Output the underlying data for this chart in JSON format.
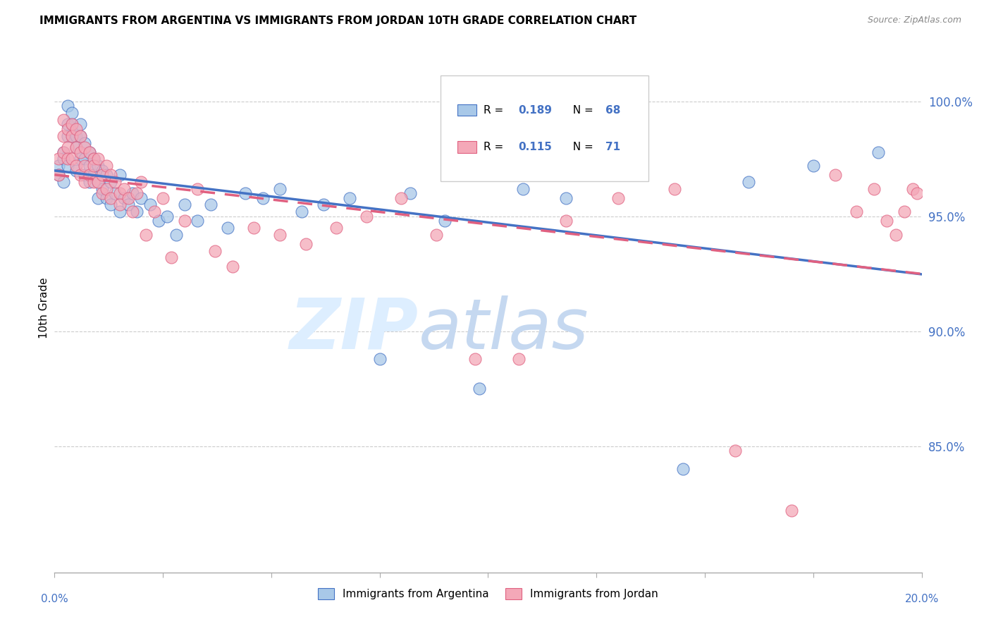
{
  "title": "IMMIGRANTS FROM ARGENTINA VS IMMIGRANTS FROM JORDAN 10TH GRADE CORRELATION CHART",
  "source": "Source: ZipAtlas.com",
  "ylabel": "10th Grade",
  "ytick_labels": [
    "100.0%",
    "95.0%",
    "90.0%",
    "85.0%"
  ],
  "ytick_values": [
    1.0,
    0.95,
    0.9,
    0.85
  ],
  "xlim": [
    0.0,
    0.2
  ],
  "ylim": [
    0.795,
    1.025
  ],
  "legend_label1": "Immigrants from Argentina",
  "legend_label2": "Immigrants from Jordan",
  "color_argentina": "#a8c8e8",
  "color_jordan": "#f4a8b8",
  "trendline_color_argentina": "#4472c4",
  "trendline_color_jordan": "#e06080",
  "watermark_zip": "ZIP",
  "watermark_atlas": "atlas",
  "R_argentina": 0.189,
  "R_jordan": 0.115,
  "N_argentina": 68,
  "N_jordan": 71,
  "argentina_x": [
    0.001,
    0.001,
    0.002,
    0.002,
    0.002,
    0.003,
    0.003,
    0.003,
    0.003,
    0.004,
    0.004,
    0.004,
    0.005,
    0.005,
    0.005,
    0.006,
    0.006,
    0.006,
    0.007,
    0.007,
    0.007,
    0.008,
    0.008,
    0.008,
    0.009,
    0.009,
    0.01,
    0.01,
    0.01,
    0.011,
    0.011,
    0.012,
    0.012,
    0.013,
    0.013,
    0.014,
    0.015,
    0.015,
    0.016,
    0.017,
    0.018,
    0.019,
    0.02,
    0.022,
    0.024,
    0.026,
    0.028,
    0.03,
    0.033,
    0.036,
    0.04,
    0.044,
    0.048,
    0.052,
    0.057,
    0.062,
    0.068,
    0.075,
    0.082,
    0.09,
    0.098,
    0.108,
    0.118,
    0.13,
    0.145,
    0.16,
    0.175,
    0.19
  ],
  "argentina_y": [
    0.972,
    0.968,
    0.978,
    0.965,
    0.975,
    0.972,
    0.985,
    0.99,
    0.998,
    0.985,
    0.99,
    0.995,
    0.985,
    0.98,
    0.97,
    0.975,
    0.985,
    0.99,
    0.975,
    0.968,
    0.982,
    0.972,
    0.965,
    0.978,
    0.968,
    0.975,
    0.965,
    0.972,
    0.958,
    0.962,
    0.97,
    0.968,
    0.958,
    0.965,
    0.955,
    0.96,
    0.952,
    0.968,
    0.958,
    0.955,
    0.96,
    0.952,
    0.958,
    0.955,
    0.948,
    0.95,
    0.942,
    0.955,
    0.948,
    0.955,
    0.945,
    0.96,
    0.958,
    0.962,
    0.952,
    0.955,
    0.958,
    0.888,
    0.96,
    0.948,
    0.875,
    0.962,
    0.958,
    0.968,
    0.84,
    0.965,
    0.972,
    0.978
  ],
  "jordan_x": [
    0.001,
    0.001,
    0.002,
    0.002,
    0.002,
    0.003,
    0.003,
    0.003,
    0.004,
    0.004,
    0.004,
    0.005,
    0.005,
    0.005,
    0.006,
    0.006,
    0.006,
    0.007,
    0.007,
    0.007,
    0.008,
    0.008,
    0.009,
    0.009,
    0.009,
    0.01,
    0.01,
    0.011,
    0.011,
    0.012,
    0.012,
    0.013,
    0.013,
    0.014,
    0.015,
    0.015,
    0.016,
    0.017,
    0.018,
    0.019,
    0.02,
    0.021,
    0.023,
    0.025,
    0.027,
    0.03,
    0.033,
    0.037,
    0.041,
    0.046,
    0.052,
    0.058,
    0.065,
    0.072,
    0.08,
    0.088,
    0.097,
    0.107,
    0.118,
    0.13,
    0.143,
    0.157,
    0.17,
    0.18,
    0.185,
    0.189,
    0.192,
    0.194,
    0.196,
    0.198,
    0.199
  ],
  "jordan_y": [
    0.968,
    0.975,
    0.985,
    0.978,
    0.992,
    0.98,
    0.975,
    0.988,
    0.99,
    0.985,
    0.975,
    0.988,
    0.98,
    0.972,
    0.985,
    0.978,
    0.968,
    0.98,
    0.972,
    0.965,
    0.978,
    0.968,
    0.975,
    0.965,
    0.972,
    0.965,
    0.975,
    0.968,
    0.96,
    0.972,
    0.962,
    0.968,
    0.958,
    0.965,
    0.96,
    0.955,
    0.962,
    0.958,
    0.952,
    0.96,
    0.965,
    0.942,
    0.952,
    0.958,
    0.932,
    0.948,
    0.962,
    0.935,
    0.928,
    0.945,
    0.942,
    0.938,
    0.945,
    0.95,
    0.958,
    0.942,
    0.888,
    0.888,
    0.948,
    0.958,
    0.962,
    0.848,
    0.822,
    0.968,
    0.952,
    0.962,
    0.948,
    0.942,
    0.952,
    0.962,
    0.96
  ]
}
